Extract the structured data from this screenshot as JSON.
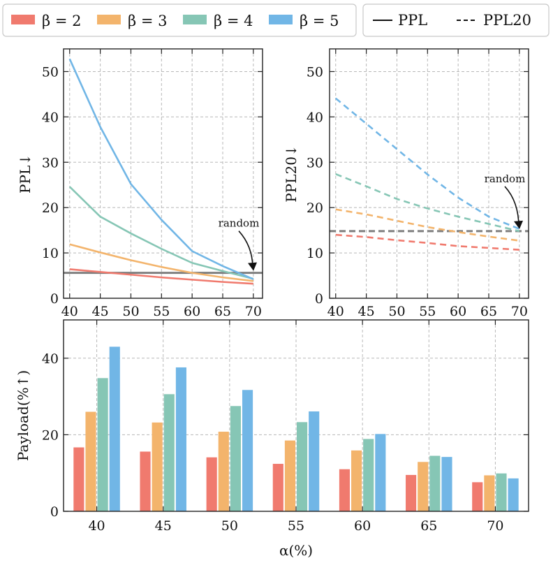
{
  "legend": {
    "beta_entries": [
      {
        "label": "β = 2",
        "color": "#f07a6e"
      },
      {
        "label": "β = 3",
        "color": "#f3b46c"
      },
      {
        "label": "β = 4",
        "color": "#86c6b5"
      },
      {
        "label": "β = 5",
        "color": "#71b6e6"
      }
    ],
    "style_entries": [
      {
        "label": "PPL",
        "style": "solid"
      },
      {
        "label": "PPL20",
        "style": "dashed"
      }
    ]
  },
  "chart_data": [
    {
      "id": "ppl",
      "type": "line",
      "ylabel": "PPL↓",
      "x": [
        40,
        45,
        50,
        55,
        60,
        65,
        70
      ],
      "ylim": [
        0,
        55
      ],
      "yticks": [
        0,
        10,
        20,
        30,
        40,
        50
      ],
      "series": [
        {
          "name": "β = 2",
          "color": "#f07a6e",
          "values": [
            6.4,
            5.8,
            5.2,
            4.6,
            4.1,
            3.6,
            3.2
          ]
        },
        {
          "name": "β = 3",
          "color": "#f3b46c",
          "values": [
            11.9,
            10.1,
            8.4,
            6.9,
            5.6,
            4.6,
            3.8
          ]
        },
        {
          "name": "β = 4",
          "color": "#86c6b5",
          "values": [
            24.6,
            18.0,
            14.3,
            10.9,
            7.8,
            6.0,
            4.3
          ]
        },
        {
          "name": "β = 5",
          "color": "#71b6e6",
          "values": [
            52.8,
            37.8,
            25.2,
            17.3,
            10.4,
            7.1,
            4.2
          ]
        }
      ],
      "reference": {
        "label": "random",
        "value": 5.6,
        "color": "#7f7f7f",
        "style": "solid"
      }
    },
    {
      "id": "ppl20",
      "type": "line",
      "ylabel": "PPL20↓",
      "x": [
        40,
        45,
        50,
        55,
        60,
        65,
        70
      ],
      "ylim": [
        0,
        55
      ],
      "yticks": [
        0,
        10,
        20,
        30,
        40,
        50
      ],
      "series": [
        {
          "name": "β = 2",
          "color": "#f07a6e",
          "style": "dashed",
          "values": [
            14.0,
            13.5,
            12.8,
            12.2,
            11.5,
            11.1,
            10.7
          ]
        },
        {
          "name": "β = 3",
          "color": "#f3b46c",
          "style": "dashed",
          "values": [
            19.6,
            18.5,
            17.1,
            15.7,
            14.6,
            13.6,
            12.7
          ]
        },
        {
          "name": "β = 4",
          "color": "#86c6b5",
          "style": "dashed",
          "values": [
            27.4,
            24.7,
            21.9,
            19.8,
            18.0,
            16.4,
            14.8
          ]
        },
        {
          "name": "β = 5",
          "color": "#71b6e6",
          "style": "dashed",
          "values": [
            44.1,
            38.5,
            32.9,
            27.3,
            22.2,
            18.0,
            15.3
          ]
        }
      ],
      "reference": {
        "label": "random",
        "value": 14.8,
        "color": "#7f7f7f",
        "style": "dashed"
      }
    },
    {
      "id": "payload",
      "type": "bar",
      "xlabel": "α(%)",
      "ylabel": "Payload(%↑)",
      "categories": [
        "40",
        "45",
        "50",
        "55",
        "60",
        "65",
        "70"
      ],
      "ylim": [
        0,
        50
      ],
      "yticks": [
        0,
        20,
        40
      ],
      "series": [
        {
          "name": "β = 2",
          "color": "#f07a6e",
          "values": [
            16.7,
            15.6,
            14.1,
            12.4,
            11.0,
            9.5,
            7.6
          ]
        },
        {
          "name": "β = 3",
          "color": "#f3b46c",
          "values": [
            26.0,
            23.2,
            20.8,
            18.5,
            15.9,
            12.9,
            9.4
          ]
        },
        {
          "name": "β = 4",
          "color": "#86c6b5",
          "values": [
            34.8,
            30.6,
            27.5,
            23.3,
            18.9,
            14.5,
            9.9
          ]
        },
        {
          "name": "β = 5",
          "color": "#71b6e6",
          "values": [
            43.0,
            37.6,
            31.7,
            26.1,
            20.2,
            14.2,
            8.6
          ]
        }
      ]
    }
  ]
}
